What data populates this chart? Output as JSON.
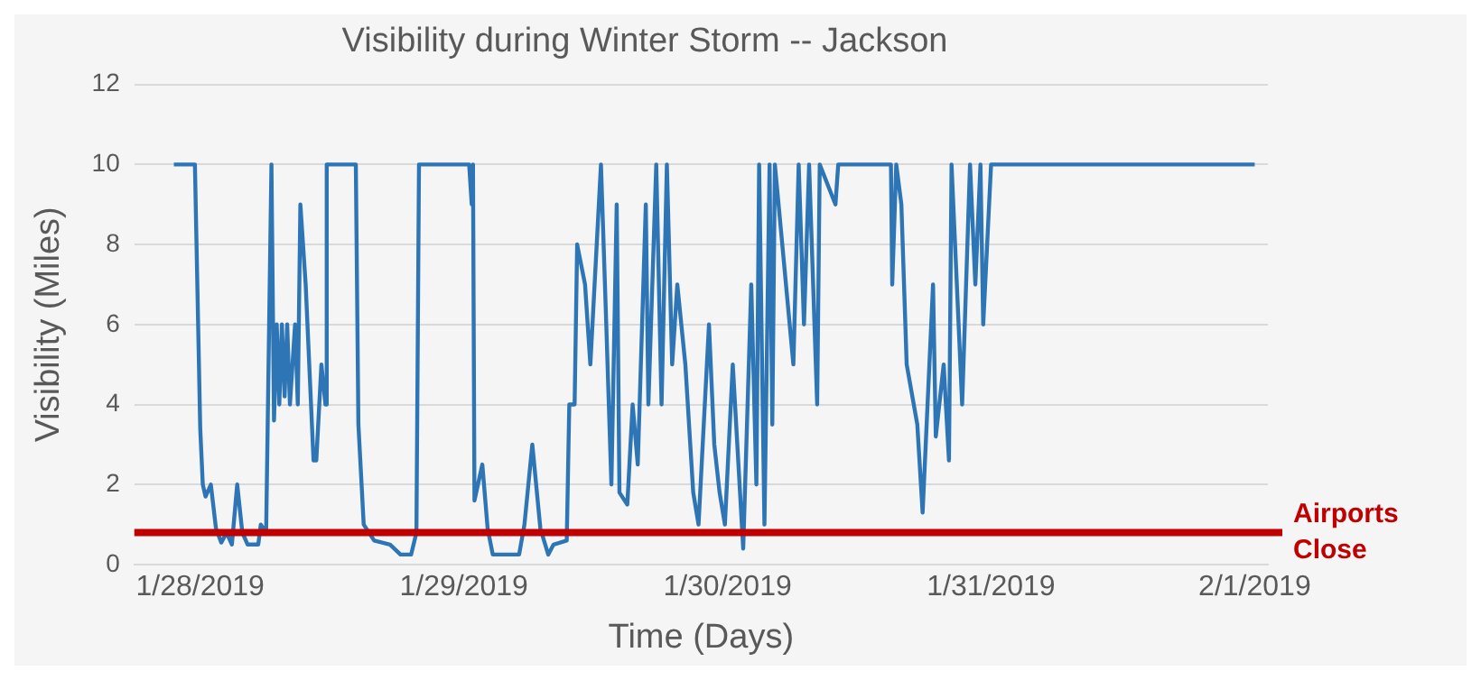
{
  "chart_data": {
    "type": "line",
    "title": "Visibility during Winter Storm -- Jackson",
    "xlabel": "Time (Days)",
    "ylabel": "Visibility (Miles)",
    "xlim": [
      "2019-01-27T18:00",
      "2019-02-01T01:12"
    ],
    "xticks": [
      {
        "value": "2019-01-28",
        "label": "1/28/2019"
      },
      {
        "value": "2019-01-29",
        "label": "1/29/2019"
      },
      {
        "value": "2019-01-30",
        "label": "1/30/2019"
      },
      {
        "value": "2019-01-31",
        "label": "1/31/2019"
      },
      {
        "value": "2019-02-01",
        "label": "2/1/2019"
      }
    ],
    "ylim": [
      0,
      12
    ],
    "yticks": [
      0,
      2,
      4,
      6,
      8,
      10,
      12
    ],
    "grid": "y",
    "legend": false,
    "marker": "none",
    "line_style": "solid",
    "ref_lines": [
      {
        "axis": "y",
        "value": 0.8,
        "label": "Airports Close",
        "color": "#c00000"
      }
    ],
    "series": [
      {
        "color": "#2e75b6",
        "x": [
          "2019-01-27T21:36",
          "2019-01-27T23:31",
          "2019-01-28T00:00",
          "2019-01-28T00:14",
          "2019-01-28T00:29",
          "2019-01-28T00:58",
          "2019-01-28T01:26",
          "2019-01-28T01:55",
          "2019-01-28T02:24",
          "2019-01-28T02:53",
          "2019-01-28T03:22",
          "2019-01-28T03:50",
          "2019-01-28T04:19",
          "2019-01-28T05:17",
          "2019-01-28T05:31",
          "2019-01-28T06:00",
          "2019-01-28T06:29",
          "2019-01-28T06:43",
          "2019-01-28T06:58",
          "2019-01-28T07:12",
          "2019-01-28T07:26",
          "2019-01-28T07:41",
          "2019-01-28T07:55",
          "2019-01-28T08:10",
          "2019-01-28T08:38",
          "2019-01-28T08:53",
          "2019-01-28T09:07",
          "2019-01-28T09:36",
          "2019-01-28T10:19",
          "2019-01-28T10:34",
          "2019-01-28T11:02",
          "2019-01-28T11:24",
          "2019-01-28T11:31",
          "2019-01-28T14:10",
          "2019-01-28T14:24",
          "2019-01-28T14:53",
          "2019-01-28T15:50",
          "2019-01-28T17:17",
          "2019-01-28T18:14",
          "2019-01-28T19:12",
          "2019-01-28T19:41",
          "2019-01-28T19:55",
          "2019-01-29T00:29",
          "2019-01-29T00:43",
          "2019-01-29T00:50",
          "2019-01-29T00:58",
          "2019-01-29T01:41",
          "2019-01-29T02:10",
          "2019-01-29T02:38",
          "2019-01-29T05:02",
          "2019-01-29T05:31",
          "2019-01-29T06:14",
          "2019-01-29T06:58",
          "2019-01-29T07:41",
          "2019-01-29T08:10",
          "2019-01-29T09:22",
          "2019-01-29T09:36",
          "2019-01-29T10:05",
          "2019-01-29T10:19",
          "2019-01-29T11:02",
          "2019-01-29T11:31",
          "2019-01-29T12:29",
          "2019-01-29T12:58",
          "2019-01-29T13:26",
          "2019-01-29T13:55",
          "2019-01-29T14:10",
          "2019-01-29T14:53",
          "2019-01-29T15:22",
          "2019-01-29T15:50",
          "2019-01-29T16:34",
          "2019-01-29T16:48",
          "2019-01-29T17:31",
          "2019-01-29T18:00",
          "2019-01-29T18:29",
          "2019-01-29T18:58",
          "2019-01-29T19:26",
          "2019-01-29T20:10",
          "2019-01-29T20:53",
          "2019-01-29T21:22",
          "2019-01-29T22:19",
          "2019-01-29T22:48",
          "2019-01-29T23:17",
          "2019-01-29T23:46",
          "2019-01-30T00:29",
          "2019-01-30T01:26",
          "2019-01-30T02:10",
          "2019-01-30T02:38",
          "2019-01-30T02:53",
          "2019-01-30T03:22",
          "2019-01-30T03:50",
          "2019-01-30T04:05",
          "2019-01-30T04:19",
          "2019-01-30T06:00",
          "2019-01-30T06:29",
          "2019-01-30T06:58",
          "2019-01-30T07:26",
          "2019-01-30T08:10",
          "2019-01-30T08:24",
          "2019-01-30T09:50",
          "2019-01-30T10:05",
          "2019-01-30T14:53",
          "2019-01-30T15:00",
          "2019-01-30T15:22",
          "2019-01-30T15:50",
          "2019-01-30T16:19",
          "2019-01-30T17:17",
          "2019-01-30T17:46",
          "2019-01-30T18:43",
          "2019-01-30T18:58",
          "2019-01-30T19:41",
          "2019-01-30T20:10",
          "2019-01-30T20:24",
          "2019-01-30T21:22",
          "2019-01-30T22:05",
          "2019-01-30T22:34",
          "2019-01-30T23:02",
          "2019-01-30T23:17",
          "2019-01-31T00:00",
          "2019-02-01T00:00"
        ],
        "values": [
          10,
          10,
          3.4,
          2,
          1.7,
          2,
          0.9,
          0.55,
          0.8,
          0.5,
          2,
          0.8,
          0.5,
          0.5,
          1,
          0.8,
          10,
          3.6,
          6,
          4,
          6,
          4.2,
          6,
          4,
          6,
          4,
          9,
          7,
          2.6,
          2.6,
          5,
          4,
          10,
          10,
          3.5,
          1,
          0.6,
          0.5,
          0.25,
          0.25,
          0.8,
          10,
          10,
          9,
          10,
          1.6,
          2.5,
          0.9,
          0.25,
          0.25,
          1,
          3,
          0.9,
          0.25,
          0.5,
          0.6,
          4,
          4,
          8,
          7,
          5,
          10,
          6,
          2,
          9,
          1.8,
          1.5,
          4,
          2.5,
          9,
          4,
          10,
          4,
          10,
          5,
          7,
          5,
          1.8,
          1,
          6,
          3,
          1.8,
          1,
          5,
          0.4,
          7,
          2,
          10,
          1,
          10,
          3.5,
          10,
          5,
          10,
          6,
          10,
          4,
          10,
          9,
          10,
          10,
          7,
          10,
          9,
          5,
          3.5,
          1.3,
          7,
          3.2,
          5,
          2.6,
          10,
          4,
          10,
          7,
          10,
          6,
          10,
          10
        ]
      }
    ]
  }
}
